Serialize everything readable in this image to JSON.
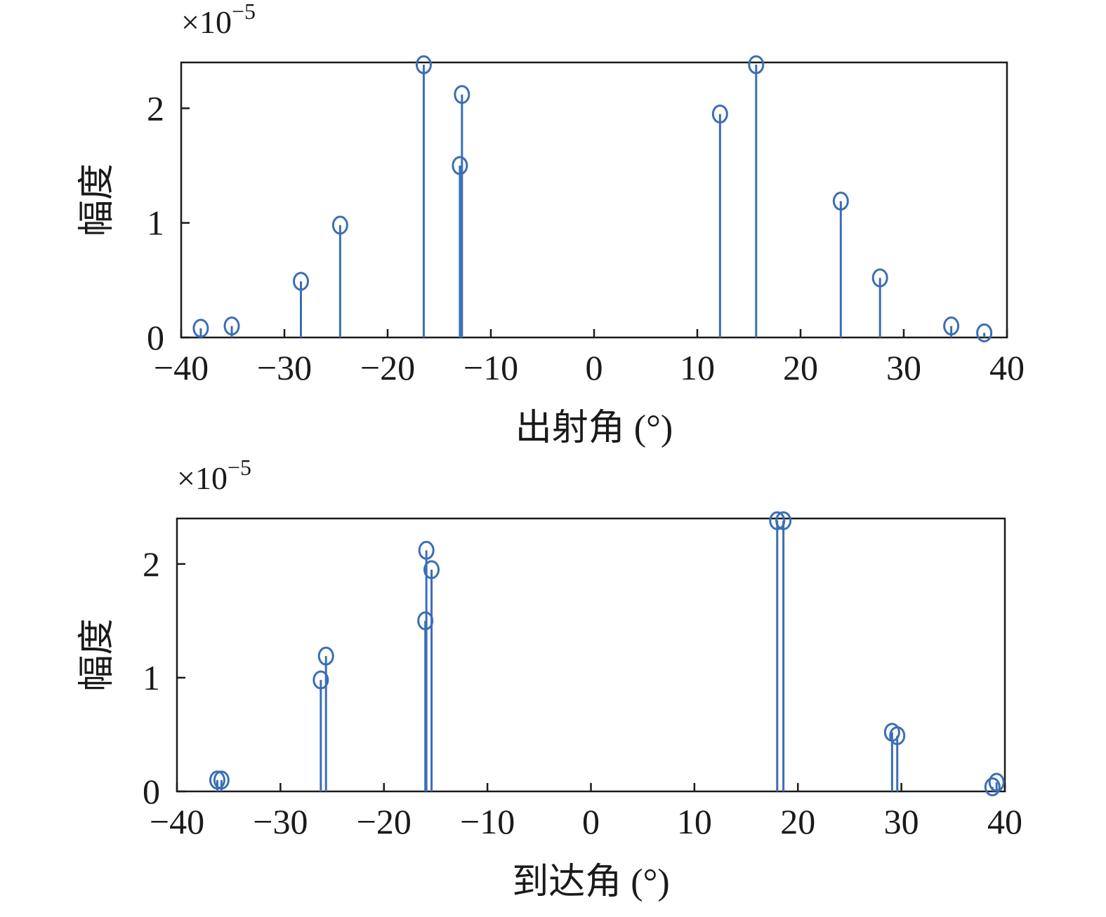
{
  "chart_data": [
    {
      "type": "scatter",
      "style": "stem",
      "xlabel": "出射角 (°)",
      "ylabel": "幅度",
      "y_multiplier": "×10",
      "y_exponent": "−5",
      "xlim": [
        -40,
        40
      ],
      "ylim": [
        0,
        2.4
      ],
      "xticks": [
        -40,
        -30,
        -20,
        -10,
        0,
        10,
        20,
        30,
        40
      ],
      "yticks": [
        0,
        1,
        2
      ],
      "xtick_labels": [
        "−40",
        "−30",
        "−20",
        "−10",
        "0",
        "10",
        "20",
        "30",
        "40"
      ],
      "ytick_labels": [
        "0",
        "1",
        "2"
      ],
      "color": "#3c6eb4",
      "x": [
        -38.1,
        -35.1,
        -28.4,
        -24.6,
        -16.5,
        -12.8,
        -13.0,
        12.2,
        15.7,
        23.9,
        27.7,
        34.6,
        37.8
      ],
      "y": [
        0.08,
        0.1,
        0.49,
        0.98,
        2.38,
        2.12,
        1.5,
        1.95,
        2.38,
        1.19,
        0.52,
        0.1,
        0.04
      ]
    },
    {
      "type": "scatter",
      "style": "stem",
      "xlabel": "到达角 (°)",
      "ylabel": "幅度",
      "y_multiplier": "×10",
      "y_exponent": "−5",
      "xlim": [
        -40,
        40
      ],
      "ylim": [
        0,
        2.4
      ],
      "xticks": [
        -40,
        -30,
        -20,
        -10,
        0,
        10,
        20,
        30,
        40
      ],
      "yticks": [
        0,
        1,
        2
      ],
      "xtick_labels": [
        "−40",
        "−30",
        "−20",
        "−10",
        "0",
        "10",
        "20",
        "30",
        "40"
      ],
      "ytick_labels": [
        "0",
        "1",
        "2"
      ],
      "color": "#3c6eb4",
      "x": [
        -36.1,
        -35.7,
        -26.1,
        -25.6,
        -15.9,
        -15.4,
        -16.0,
        18.0,
        18.6,
        29.1,
        29.6,
        38.8,
        39.2
      ],
      "y": [
        0.1,
        0.1,
        0.98,
        1.19,
        2.12,
        1.95,
        1.5,
        2.38,
        2.38,
        0.52,
        0.49,
        0.04,
        0.08
      ]
    }
  ]
}
